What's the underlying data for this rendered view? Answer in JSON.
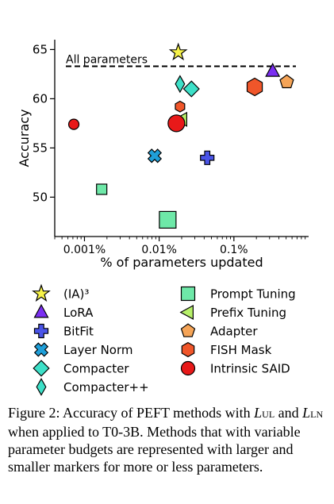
{
  "chart_data": {
    "type": "scatter",
    "title": "",
    "xlabel": "% of parameters updated",
    "ylabel": "Accuracy",
    "x_scale": "log",
    "xlim": [
      0.0004,
      1.0
    ],
    "ylim": [
      46,
      66
    ],
    "x_ticks": [
      {
        "value": 0.001,
        "label": "0.001%"
      },
      {
        "value": 0.01,
        "label": "0.01%"
      },
      {
        "value": 0.1,
        "label": "0.1%"
      }
    ],
    "y_ticks": [
      {
        "value": 50,
        "label": "50"
      },
      {
        "value": 55,
        "label": "55"
      },
      {
        "value": 60,
        "label": "60"
      },
      {
        "value": 65,
        "label": "65"
      }
    ],
    "reference_line": {
      "label": "All parameters",
      "y": 63.3
    },
    "legend_position": "below",
    "series": [
      {
        "name": "(IA)³",
        "marker": "star",
        "color": "#f7f34a",
        "points": [
          {
            "x": 0.018,
            "y": 64.7
          }
        ]
      },
      {
        "name": "LoRA",
        "marker": "triangle-up",
        "color": "#7b2ff2",
        "points": [
          {
            "x": 0.33,
            "y": 62.8
          }
        ]
      },
      {
        "name": "BitFit",
        "marker": "plus",
        "color": "#4a54e8",
        "points": [
          {
            "x": 0.044,
            "y": 54.0
          }
        ]
      },
      {
        "name": "Layer Norm",
        "marker": "x",
        "color": "#1f9fd9",
        "points": [
          {
            "x": 0.0087,
            "y": 54.2
          }
        ]
      },
      {
        "name": "Compacter",
        "marker": "diamond",
        "color": "#3de0c8",
        "points": [
          {
            "x": 0.027,
            "y": 61.0
          }
        ]
      },
      {
        "name": "Compacter++",
        "marker": "thin-diamond",
        "color": "#3de0c8",
        "points": [
          {
            "x": 0.019,
            "y": 61.5
          }
        ]
      },
      {
        "name": "Prompt Tuning",
        "marker": "square",
        "color": "#6ee8a8",
        "points": [
          {
            "x": 0.0017,
            "y": 50.8
          },
          {
            "x": 0.013,
            "y": 47.7
          }
        ]
      },
      {
        "name": "Prefix Tuning",
        "marker": "triangle-left",
        "color": "#b7f06a",
        "points": [
          {
            "x": 0.02,
            "y": 57.9
          }
        ]
      },
      {
        "name": "Adapter",
        "marker": "pentagon",
        "color": "#f5a457",
        "points": [
          {
            "x": 0.51,
            "y": 61.7
          }
        ]
      },
      {
        "name": "FISH Mask",
        "marker": "hexagon",
        "color": "#f0562a",
        "points": [
          {
            "x": 0.19,
            "y": 61.2
          },
          {
            "x": 0.019,
            "y": 59.2
          }
        ]
      },
      {
        "name": "Intrinsic SAID",
        "marker": "circle",
        "color": "#e81919",
        "points": [
          {
            "x": 0.00072,
            "y": 57.4
          },
          {
            "x": 0.017,
            "y": 57.5
          }
        ]
      }
    ]
  },
  "caption": {
    "lead": "Figure 2: Accuracy of PEFT methods with ",
    "l": "L",
    "sub1": "UL",
    "and": " and ",
    "sub2": "LN",
    "tail": " when applied to T0-3B. Methods that with variable parameter budgets are represented with larger and smaller markers for more or less parameters."
  }
}
